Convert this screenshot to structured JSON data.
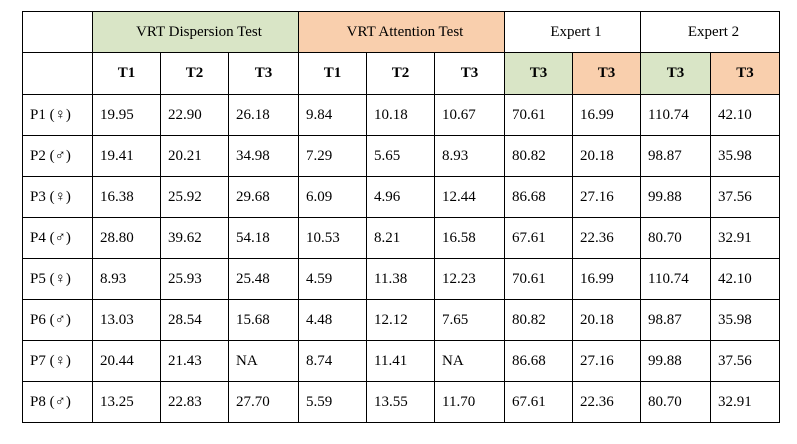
{
  "colors": {
    "green": "#d9e5c6",
    "orange": "#f9cfad"
  },
  "groups": [
    {
      "label": "VRT Dispersion Test"
    },
    {
      "label": "VRT Attention Test"
    },
    {
      "label": "Expert 1"
    },
    {
      "label": "Expert 2"
    }
  ],
  "subheaders": [
    "T1",
    "T2",
    "T3",
    "T1",
    "T2",
    "T3",
    "T3",
    "T3",
    "T3",
    "T3"
  ],
  "rows": [
    {
      "label": "P1 (♀)",
      "cells": [
        "19.95",
        "22.90",
        "26.18",
        "9.84",
        "10.18",
        "10.67",
        "70.61",
        "16.99",
        "110.74",
        "42.10"
      ]
    },
    {
      "label": "P2 (♂)",
      "cells": [
        "19.41",
        "20.21",
        "34.98",
        "7.29",
        "5.65",
        "8.93",
        "80.82",
        "20.18",
        "98.87",
        "35.98"
      ]
    },
    {
      "label": "P3 (♀)",
      "cells": [
        "16.38",
        "25.92",
        "29.68",
        "6.09",
        "4.96",
        "12.44",
        "86.68",
        "27.16",
        "99.88",
        "37.56"
      ]
    },
    {
      "label": "P4 (♂)",
      "cells": [
        "28.80",
        "39.62",
        "54.18",
        "10.53",
        "8.21",
        "16.58",
        "67.61",
        "22.36",
        "80.70",
        "32.91"
      ]
    },
    {
      "label": "P5 (♀)",
      "cells": [
        "8.93",
        "25.93",
        "25.48",
        "4.59",
        "11.38",
        "12.23",
        "70.61",
        "16.99",
        "110.74",
        "42.10"
      ]
    },
    {
      "label": "P6 (♂)",
      "cells": [
        "13.03",
        "28.54",
        "15.68",
        "4.48",
        "12.12",
        "7.65",
        "80.82",
        "20.18",
        "98.87",
        "35.98"
      ]
    },
    {
      "label": "P7 (♀)",
      "cells": [
        "20.44",
        "21.43",
        "NA",
        "8.74",
        "11.41",
        "NA",
        "86.68",
        "27.16",
        "99.88",
        "37.56"
      ]
    },
    {
      "label": "P8 (♂)",
      "cells": [
        "13.25",
        "22.83",
        "27.70",
        "5.59",
        "13.55",
        "11.70",
        "67.61",
        "22.36",
        "80.70",
        "32.91"
      ]
    }
  ]
}
